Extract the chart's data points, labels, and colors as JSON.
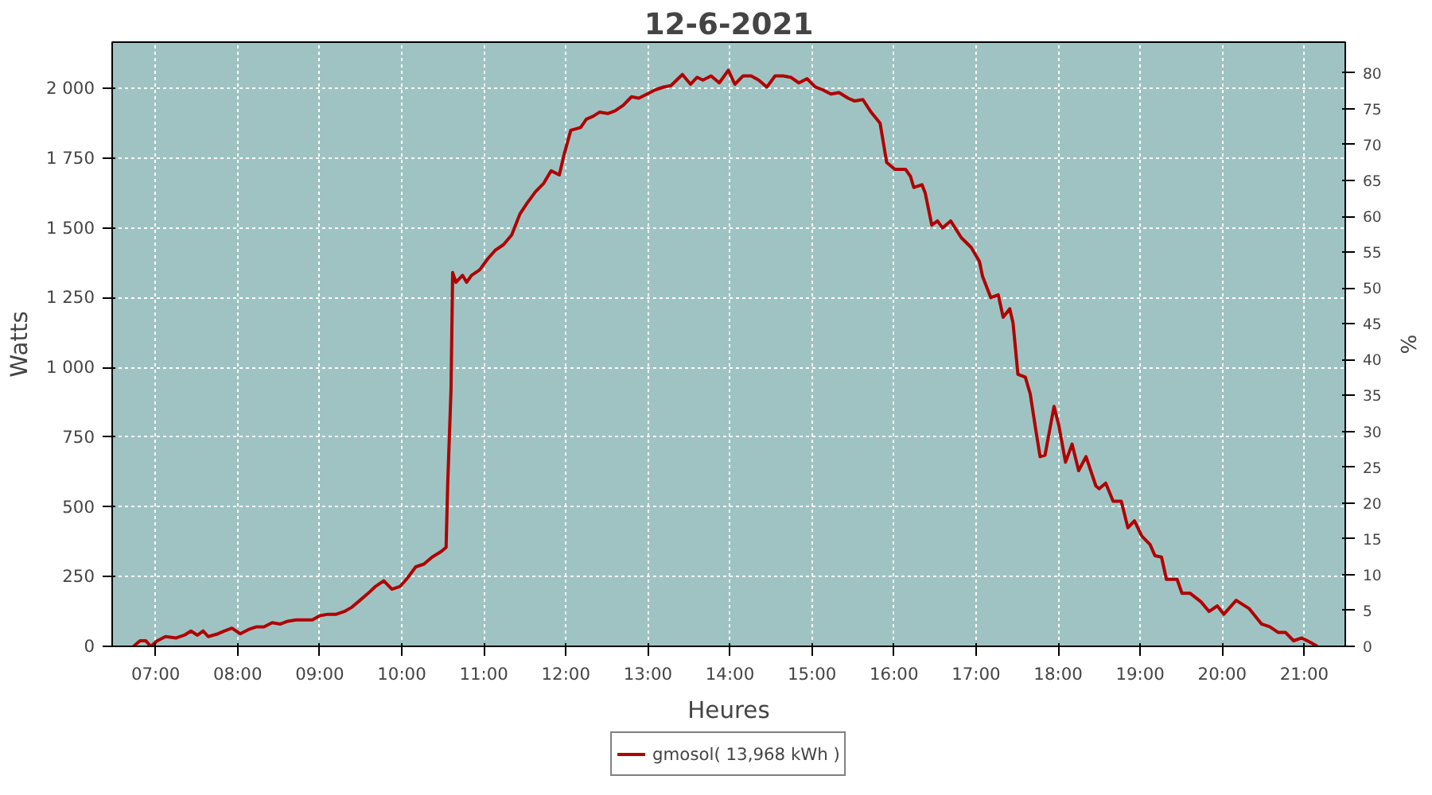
{
  "chart_data": {
    "type": "line",
    "title": "12-6-2021",
    "xlabel": "Heures",
    "ylabel": "Watts",
    "y2label": "%",
    "x": [
      6.73,
      6.81,
      6.88,
      6.94,
      7.02,
      7.12,
      7.25,
      7.35,
      7.43,
      7.51,
      7.58,
      7.64,
      7.76,
      7.84,
      7.93,
      8.03,
      8.13,
      8.23,
      8.32,
      8.42,
      8.52,
      8.61,
      8.71,
      8.91,
      9.0,
      9.1,
      9.2,
      9.3,
      9.39,
      9.49,
      9.59,
      9.68,
      9.78,
      9.88,
      9.98,
      10.07,
      10.17,
      10.27,
      10.37,
      10.48,
      10.54,
      10.56,
      10.6,
      10.62,
      10.66,
      10.74,
      10.79,
      10.85,
      10.95,
      11.05,
      11.14,
      11.24,
      11.34,
      11.44,
      11.53,
      11.63,
      11.73,
      11.82,
      11.92,
      11.98,
      12.06,
      12.18,
      12.25,
      12.33,
      12.41,
      12.51,
      12.6,
      12.7,
      12.8,
      12.89,
      12.99,
      13.09,
      13.19,
      13.28,
      13.42,
      13.52,
      13.6,
      13.67,
      13.77,
      13.87,
      13.98,
      14.06,
      14.16,
      14.26,
      14.35,
      14.45,
      14.55,
      14.65,
      14.74,
      14.84,
      14.94,
      15.04,
      15.13,
      15.23,
      15.33,
      15.44,
      15.52,
      15.62,
      15.72,
      15.83,
      15.91,
      16.01,
      16.14,
      16.2,
      16.24,
      16.34,
      16.38,
      16.46,
      16.53,
      16.59,
      16.69,
      16.82,
      16.94,
      17.04,
      17.08,
      17.18,
      17.27,
      17.33,
      17.41,
      17.45,
      17.51,
      17.6,
      17.66,
      17.72,
      17.78,
      17.84,
      17.95,
      18.01,
      18.09,
      18.17,
      18.25,
      18.34,
      18.46,
      18.5,
      18.58,
      18.67,
      18.77,
      18.85,
      18.93,
      19.02,
      19.12,
      19.18,
      19.26,
      19.32,
      19.45,
      19.51,
      19.61,
      19.74,
      19.84,
      19.94,
      20.02,
      20.17,
      20.33,
      20.48,
      20.58,
      20.68,
      20.77,
      20.87,
      20.97,
      21.07,
      21.16
    ],
    "series": [
      {
        "name": "gmosol( 13,968 kWh )",
        "color": "#b00000",
        "values": [
          0,
          20,
          20,
          0,
          20,
          35,
          30,
          40,
          55,
          40,
          55,
          35,
          45,
          55,
          65,
          45,
          60,
          70,
          70,
          85,
          80,
          90,
          95,
          95,
          110,
          115,
          115,
          125,
          140,
          165,
          190,
          215,
          235,
          205,
          215,
          245,
          285,
          295,
          320,
          340,
          355,
          585,
          920,
          1340,
          1305,
          1330,
          1305,
          1330,
          1350,
          1390,
          1420,
          1440,
          1475,
          1550,
          1590,
          1630,
          1660,
          1705,
          1690,
          1765,
          1850,
          1860,
          1890,
          1900,
          1915,
          1910,
          1920,
          1940,
          1970,
          1965,
          1980,
          1995,
          2005,
          2010,
          2050,
          2015,
          2040,
          2030,
          2045,
          2020,
          2065,
          2015,
          2045,
          2045,
          2030,
          2005,
          2045,
          2045,
          2040,
          2020,
          2035,
          2005,
          1995,
          1980,
          1985,
          1965,
          1955,
          1960,
          1915,
          1875,
          1735,
          1710,
          1710,
          1685,
          1645,
          1655,
          1625,
          1510,
          1525,
          1500,
          1525,
          1465,
          1430,
          1380,
          1325,
          1250,
          1260,
          1180,
          1210,
          1160,
          975,
          965,
          905,
          790,
          680,
          685,
          860,
          790,
          660,
          725,
          630,
          680,
          575,
          565,
          585,
          520,
          520,
          425,
          450,
          395,
          365,
          325,
          320,
          240,
          240,
          190,
          190,
          160,
          125,
          145,
          115,
          165,
          135,
          80,
          70,
          50,
          50,
          20,
          30,
          15,
          0
        ]
      }
    ],
    "xlim": [
      6.47,
      21.5
    ],
    "xticks": [
      {
        "value": 7,
        "label": "07:00"
      },
      {
        "value": 8,
        "label": "08:00"
      },
      {
        "value": 9,
        "label": "09:00"
      },
      {
        "value": 10,
        "label": "10:00"
      },
      {
        "value": 11,
        "label": "11:00"
      },
      {
        "value": 12,
        "label": "12:00"
      },
      {
        "value": 13,
        "label": "13:00"
      },
      {
        "value": 14,
        "label": "14:00"
      },
      {
        "value": 15,
        "label": "15:00"
      },
      {
        "value": 16,
        "label": "16:00"
      },
      {
        "value": 17,
        "label": "17:00"
      },
      {
        "value": 18,
        "label": "18:00"
      },
      {
        "value": 19,
        "label": "19:00"
      },
      {
        "value": 20,
        "label": "20:00"
      },
      {
        "value": 21,
        "label": "21:00"
      }
    ],
    "ylim": [
      0,
      2166
    ],
    "yticks": [
      0,
      250,
      500,
      750,
      {
        "value": 1000,
        "label": "1 000"
      },
      {
        "value": 1250,
        "label": "1 250"
      },
      {
        "value": 1500,
        "label": "1 500"
      },
      {
        "value": 1750,
        "label": "1 750"
      },
      {
        "value": 2000,
        "label": "2 000"
      }
    ],
    "y2lim": [
      0,
      84.3
    ],
    "y2ticks": [
      0,
      5,
      10,
      15,
      20,
      25,
      30,
      35,
      40,
      45,
      50,
      55,
      60,
      65,
      70,
      75,
      80
    ],
    "grid": true,
    "legend": "bottom",
    "line_style": "solid"
  }
}
